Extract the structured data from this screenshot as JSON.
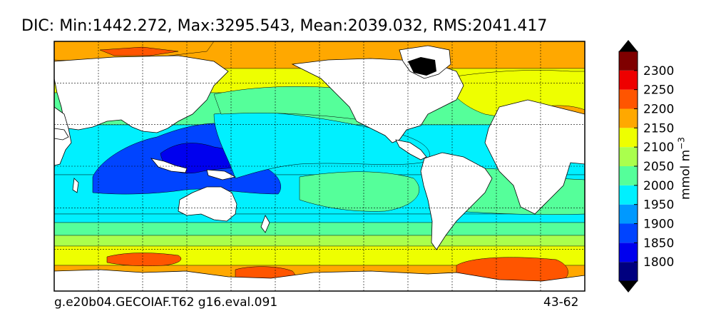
{
  "chart_data": {
    "type": "heatmap",
    "title": "DIC: Min:1442.272, Max:3295.543, Mean:2039.032, RMS:2041.417",
    "variable": "DIC",
    "stats": {
      "min": 1442.272,
      "max": 3295.543,
      "mean": 2039.032,
      "rms": 2041.417
    },
    "footer_left": "g.e20b04.GECOIAF.T62 g16.eval.091",
    "footer_right": "43-62",
    "colorbar": {
      "label_base": "mmol m",
      "label_exp": "−3",
      "levels": [
        1750,
        1800,
        1850,
        1900,
        1950,
        2000,
        2050,
        2100,
        2150,
        2200,
        2250,
        2300,
        2350
      ],
      "tick_labels": [
        "1800",
        "1850",
        "1900",
        "1950",
        "2000",
        "2050",
        "2100",
        "2150",
        "2200",
        "2250",
        "2300"
      ],
      "colors": [
        "#00007f",
        "#0000ee",
        "#0044ff",
        "#0099ff",
        "#00f0ff",
        "#55ff9a",
        "#aaff4d",
        "#eeff00",
        "#ffa800",
        "#ff5500",
        "#ee0000",
        "#7f0000"
      ],
      "extend": "both"
    },
    "grid": true,
    "projection": "global lon-lat"
  }
}
